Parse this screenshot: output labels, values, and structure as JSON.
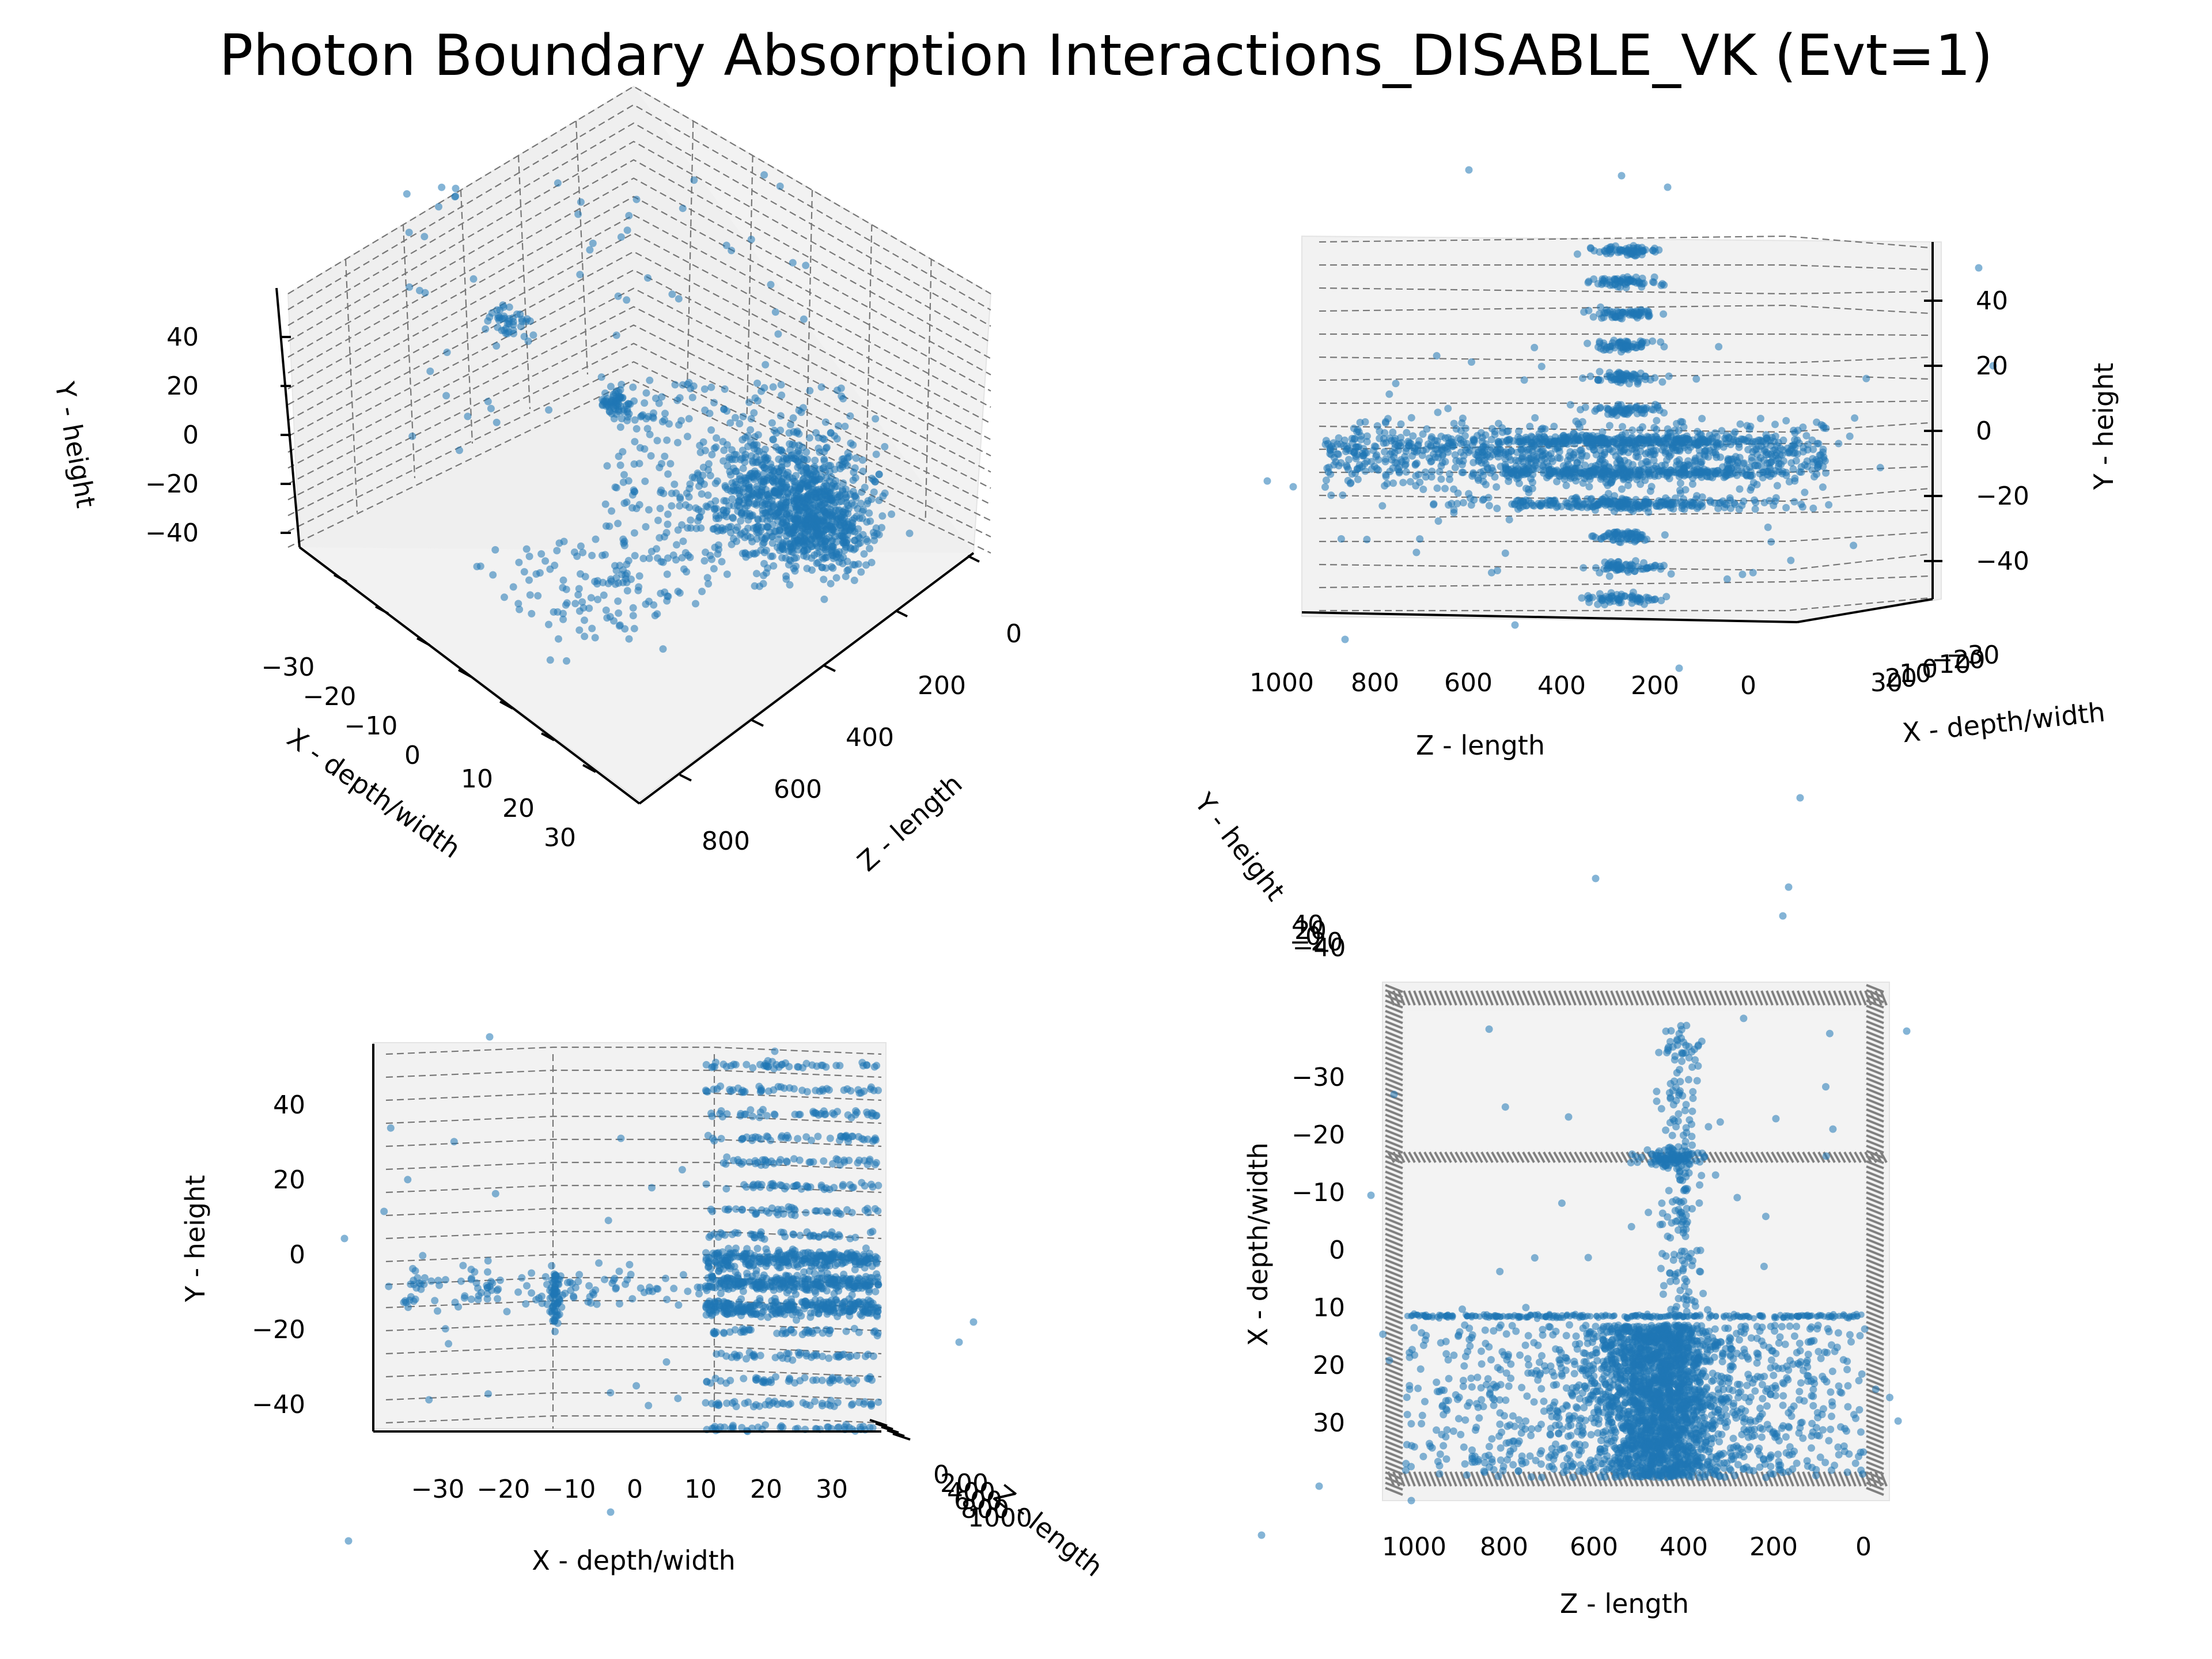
{
  "figure": {
    "title": "Photon Boundary Absorption Interactions_DISABLE_VK (Evt=1)"
  },
  "chart_data": [
    {
      "type": "scatter",
      "view": "3d-isometric",
      "xlabel": "X - depth/width",
      "ylabel": "Y - height",
      "zlabel": "Z - length",
      "xticks": [
        "−30",
        "−20",
        "−10",
        "0",
        "10",
        "20",
        "30"
      ],
      "yticks": [
        "40",
        "20",
        "0",
        "−20",
        "−40"
      ],
      "zticks": [
        "0",
        "200",
        "400",
        "600",
        "800"
      ],
      "xlim": [
        -35,
        35
      ],
      "ylim": [
        -50,
        50
      ],
      "zlim": [
        0,
        1000
      ],
      "color": "#1f77b4",
      "grid": true
    },
    {
      "type": "scatter",
      "view": "side (Z vs Y)",
      "xlabel": "Z - length",
      "ylabel": "Y - height",
      "depthlabel": "X - depth/width",
      "xticks": [
        "1000",
        "800",
        "600",
        "400",
        "200",
        "0"
      ],
      "yticks": [
        "40",
        "20",
        "0",
        "−20",
        "−40"
      ],
      "depthticks": [
        "30",
        "20",
        "10",
        "0",
        "−10",
        "−20",
        "−30"
      ],
      "xlim": [
        1000,
        0
      ],
      "ylim": [
        -50,
        50
      ],
      "color": "#1f77b4",
      "grid": true
    },
    {
      "type": "scatter",
      "view": "front (X vs Y)",
      "xlabel": "X - depth/width",
      "ylabel": "Y - height",
      "depthlabel": "Z - length",
      "xticks": [
        "−30",
        "−20",
        "−10",
        "0",
        "10",
        "20",
        "30"
      ],
      "yticks": [
        "40",
        "20",
        "0",
        "−20",
        "−40"
      ],
      "depthticks": [
        "0",
        "200",
        "400",
        "600",
        "800",
        "1000"
      ],
      "xlim": [
        -38,
        38
      ],
      "ylim": [
        -50,
        50
      ],
      "color": "#1f77b4",
      "grid": true
    },
    {
      "type": "scatter",
      "view": "top (Z vs X)",
      "xlabel": "Z - length",
      "ylabel": "X - depth/width",
      "depthlabel": "Y - height",
      "xticks": [
        "1000",
        "800",
        "600",
        "400",
        "200",
        "0"
      ],
      "yticks": [
        "−30",
        "−20",
        "−10",
        "0",
        "10",
        "20",
        "30"
      ],
      "depthticks": [
        "40",
        "20",
        "0",
        "−20",
        "−40"
      ],
      "xlim": [
        1050,
        -50
      ],
      "ylim": [
        -40,
        40
      ],
      "color": "#1f77b4",
      "grid": true
    }
  ]
}
